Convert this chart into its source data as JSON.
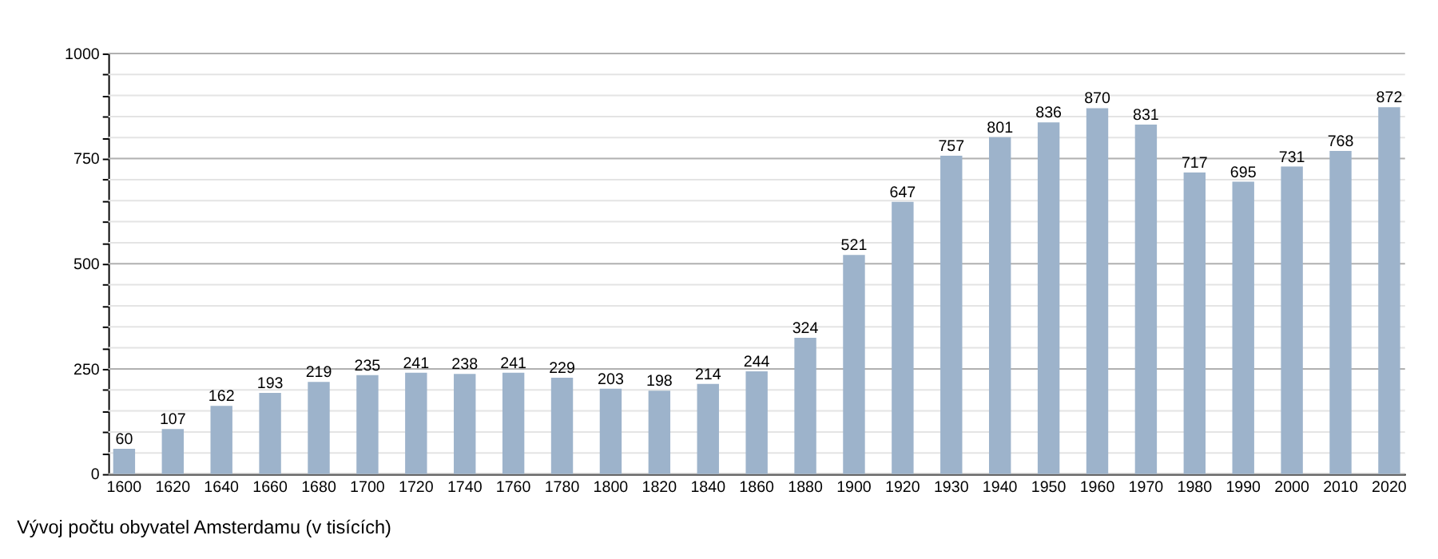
{
  "chart_data": {
    "type": "bar",
    "categories": [
      "1600",
      "1620",
      "1640",
      "1660",
      "1680",
      "1700",
      "1720",
      "1740",
      "1760",
      "1780",
      "1800",
      "1820",
      "1840",
      "1860",
      "1880",
      "1900",
      "1920",
      "1930",
      "1940",
      "1950",
      "1960",
      "1970",
      "1980",
      "1990",
      "2000",
      "2010",
      "2020"
    ],
    "values": [
      60,
      107,
      162,
      193,
      219,
      235,
      241,
      238,
      241,
      229,
      203,
      198,
      214,
      244,
      324,
      521,
      647,
      757,
      801,
      836,
      870,
      831,
      717,
      695,
      731,
      768,
      872
    ],
    "color": "#9db3cb",
    "ylim": [
      0,
      1000
    ],
    "yticks": [
      0,
      {
        "value": 50,
        "label": null
      },
      {
        "value": 100,
        "label": null
      },
      {
        "value": 150,
        "label": null
      },
      {
        "value": 200,
        "label": null
      },
      250,
      {
        "value": 300,
        "label": null
      },
      {
        "value": 350,
        "label": null
      },
      {
        "value": 400,
        "label": null
      },
      {
        "value": 450,
        "label": null
      },
      500,
      {
        "value": 550,
        "label": null
      },
      {
        "value": 600,
        "label": null
      },
      {
        "value": 650,
        "label": null
      },
      {
        "value": 700,
        "label": null
      },
      750,
      {
        "value": 800,
        "label": null
      },
      {
        "value": 850,
        "label": null
      },
      {
        "value": 900,
        "label": null
      },
      {
        "value": 950,
        "label": null
      },
      1000
    ],
    "grid": true,
    "data_labels": true,
    "annotations": [
      "Vývoj počtu obyvatel Amsterdamu (v tisících)"
    ]
  }
}
